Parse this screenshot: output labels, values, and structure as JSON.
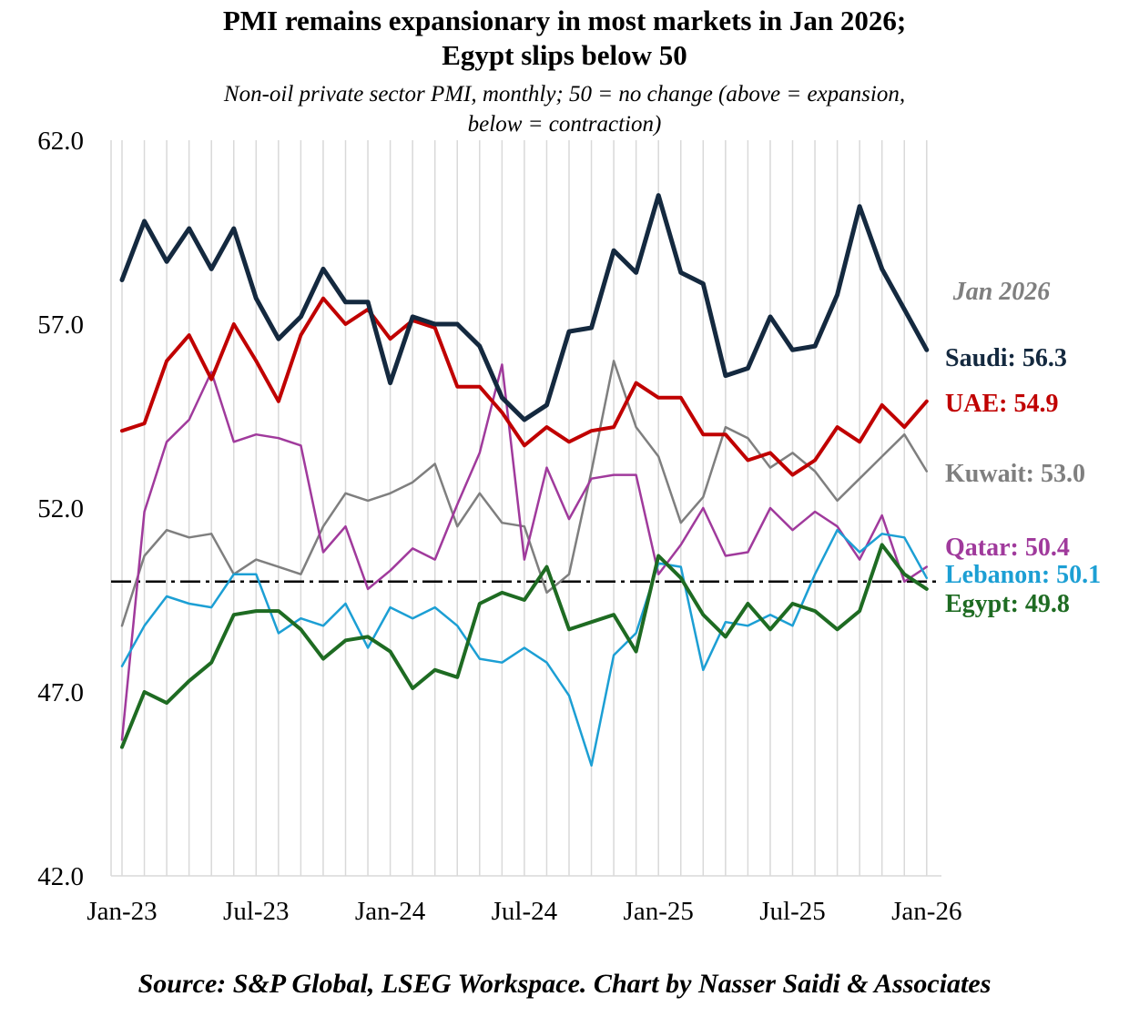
{
  "chart_data": {
    "type": "line",
    "title_line1": "PMI remains expansionary in most markets in Jan 2026;",
    "title_line2": "Egypt slips below 50",
    "subtitle_line1": "Non-oil private sector PMI, monthly; 50 = no change (above = expansion,",
    "subtitle_line2": "below = contraction)",
    "source": "Source: S&P Global, LSEG Workspace. Chart by Nasser Saidi & Associates",
    "annotation": "Jan 2026",
    "ylim": [
      42.0,
      62.0
    ],
    "yticks": [
      "42.0",
      "47.0",
      "52.0",
      "57.0",
      "62.0"
    ],
    "ytick_values": [
      42,
      47,
      52,
      57,
      62
    ],
    "xticks": [
      "Jan-23",
      "Jul-23",
      "Jan-24",
      "Jul-24",
      "Jan-25",
      "Jul-25",
      "Jan-26"
    ],
    "xtick_index": [
      0,
      6,
      12,
      18,
      24,
      30,
      36
    ],
    "reference_line": 50,
    "categories": [
      "Jan-23",
      "Feb-23",
      "Mar-23",
      "Apr-23",
      "May-23",
      "Jun-23",
      "Jul-23",
      "Aug-23",
      "Sep-23",
      "Oct-23",
      "Nov-23",
      "Dec-23",
      "Jan-24",
      "Feb-24",
      "Mar-24",
      "Apr-24",
      "May-24",
      "Jun-24",
      "Jul-24",
      "Aug-24",
      "Sep-24",
      "Oct-24",
      "Nov-24",
      "Dec-24",
      "Jan-25",
      "Feb-25",
      "Mar-25",
      "Apr-25",
      "May-25",
      "Jun-25",
      "Jul-25",
      "Aug-25",
      "Sep-25",
      "Oct-25",
      "Nov-25",
      "Dec-25",
      "Jan-26"
    ],
    "series": [
      {
        "name": "Saudi",
        "label": "Saudi: 56.3",
        "color": "#14293f",
        "values": [
          58.2,
          59.8,
          58.7,
          59.6,
          58.5,
          59.6,
          57.7,
          56.6,
          57.2,
          58.5,
          57.6,
          57.6,
          55.4,
          57.2,
          57.0,
          57.0,
          56.4,
          55.0,
          54.4,
          54.8,
          56.8,
          56.9,
          59.0,
          58.4,
          60.5,
          58.4,
          58.1,
          55.6,
          55.8,
          57.2,
          56.3,
          56.4,
          57.8,
          60.2,
          58.5,
          57.4,
          56.3
        ]
      },
      {
        "name": "UAE",
        "label": "UAE: 54.9",
        "color": "#c00000",
        "values": [
          54.1,
          54.3,
          56.0,
          56.7,
          55.5,
          57.0,
          56.0,
          54.9,
          56.7,
          57.7,
          57.0,
          57.4,
          56.6,
          57.1,
          56.9,
          55.3,
          55.3,
          54.6,
          53.7,
          54.2,
          53.8,
          54.1,
          54.2,
          55.4,
          55.0,
          55.0,
          54.0,
          54.0,
          53.3,
          53.5,
          52.9,
          53.3,
          54.2,
          53.8,
          54.8,
          54.2,
          54.9
        ]
      },
      {
        "name": "Kuwait",
        "label": "Kuwait: 53.0",
        "color": "#7f7f7f",
        "values": [
          48.8,
          50.7,
          51.4,
          51.2,
          51.3,
          50.2,
          50.6,
          50.4,
          50.2,
          51.5,
          52.4,
          52.2,
          52.4,
          52.7,
          53.2,
          51.5,
          52.4,
          51.6,
          51.5,
          49.7,
          50.2,
          53.0,
          56.0,
          54.2,
          53.4,
          51.6,
          52.3,
          54.2,
          53.9,
          53.1,
          53.5,
          53.0,
          52.2,
          52.8,
          53.4,
          54.0,
          53.0
        ]
      },
      {
        "name": "Qatar",
        "label": "Qatar: 50.4",
        "color": "#a03a9c",
        "values": [
          45.7,
          51.9,
          53.8,
          54.4,
          55.7,
          53.8,
          54.0,
          53.9,
          53.7,
          50.8,
          51.5,
          49.8,
          50.3,
          50.9,
          50.6,
          52.1,
          53.5,
          55.9,
          50.6,
          53.1,
          51.7,
          52.8,
          52.9,
          52.9,
          50.2,
          51.0,
          52.0,
          50.7,
          50.8,
          52.0,
          51.4,
          51.9,
          51.5,
          50.6,
          51.8,
          50.0,
          50.4
        ]
      },
      {
        "name": "Lebanon",
        "label": "Lebanon: 50.1",
        "color": "#1c9fd4",
        "values": [
          47.7,
          48.8,
          49.6,
          49.4,
          49.3,
          50.2,
          50.2,
          48.6,
          49.0,
          48.8,
          49.4,
          48.2,
          49.3,
          49.0,
          49.3,
          48.8,
          47.9,
          47.8,
          48.2,
          47.8,
          46.9,
          45.0,
          48.0,
          48.6,
          50.5,
          50.4,
          47.6,
          48.9,
          48.8,
          49.1,
          48.8,
          50.2,
          51.4,
          50.8,
          51.3,
          51.2,
          50.1
        ]
      },
      {
        "name": "Egypt",
        "label": "Egypt: 49.8",
        "color": "#1e6b22",
        "values": [
          45.5,
          47.0,
          46.7,
          47.3,
          47.8,
          49.1,
          49.2,
          49.2,
          48.7,
          47.9,
          48.4,
          48.5,
          48.1,
          47.1,
          47.6,
          47.4,
          49.4,
          49.7,
          49.5,
          50.4,
          48.7,
          48.9,
          49.1,
          48.1,
          50.7,
          50.1,
          49.1,
          48.5,
          49.4,
          48.7,
          49.4,
          49.2,
          48.7,
          49.2,
          51.0,
          50.2,
          49.8
        ]
      }
    ]
  }
}
